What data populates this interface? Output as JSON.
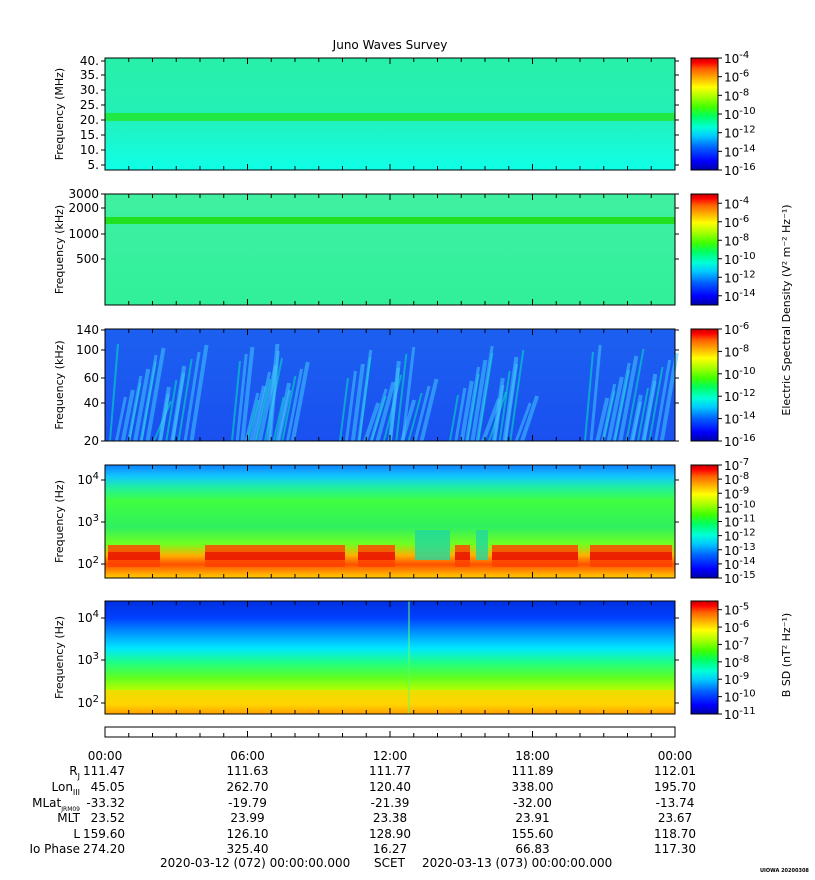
{
  "title": "Juno Waves Survey",
  "footer": {
    "start": "2020-03-12 (072) 00:00:00.000",
    "middle": "SCET",
    "end": "2020-03-13 (073) 00:00:00.000",
    "stamp": "UIOWA 20200308"
  },
  "colorbar_labels": {
    "electric": "Electric Spectral Density (V² m⁻² Hz⁻¹)",
    "magnetic": "B SD (nT² Hz⁻¹)"
  },
  "colors": {
    "scale": [
      "#0000a8",
      "#0000ff",
      "#0060ff",
      "#00c8ff",
      "#00ffd8",
      "#00ff60",
      "#40ff00",
      "#b0ff00",
      "#ffff00",
      "#ffb000",
      "#ff6000",
      "#ff0000",
      "#c00000"
    ]
  },
  "ephemeris": {
    "times": [
      "00:00",
      "06:00",
      "12:00",
      "18:00",
      "00:00"
    ],
    "rows": [
      {
        "label": "R",
        "sub": "J",
        "values": [
          "111.47",
          "111.63",
          "111.77",
          "111.89",
          "112.01"
        ]
      },
      {
        "label": "Lon",
        "sub": "III",
        "values": [
          "45.05",
          "262.70",
          "120.40",
          "338.00",
          "195.70"
        ]
      },
      {
        "label": "MLat",
        "sub": "JRM09",
        "values": [
          "-33.32",
          "-19.79",
          "-21.39",
          "-32.00",
          "-13.74"
        ]
      },
      {
        "label": "MLT",
        "sub": "",
        "values": [
          "23.52",
          "23.99",
          "23.38",
          "23.91",
          "23.67"
        ]
      },
      {
        "label": "L",
        "sub": "",
        "values": [
          "159.60",
          "126.10",
          "128.90",
          "155.60",
          "118.70"
        ]
      },
      {
        "label": "Io Phase",
        "sub": "",
        "values": [
          "274.20",
          "325.40",
          "16.27",
          "66.83",
          "117.30"
        ]
      }
    ]
  },
  "chart_data": [
    {
      "type": "heatmap",
      "title": "Juno Waves Survey",
      "ylabel": "Frequency (MHz)",
      "yticks": [
        "40.",
        "35.",
        "30.",
        "25.",
        "20.",
        "15.",
        "10.",
        "5."
      ],
      "ylim": [
        3,
        41
      ],
      "colorbar": {
        "min_exp": -16,
        "max_exp": -4,
        "tick_exps": [
          -4,
          -6,
          -8,
          -10,
          -12,
          -14,
          -16
        ]
      },
      "features": [
        {
          "type": "constant band",
          "frequency": 21,
          "unit": "MHz",
          "level_exp": -12.5
        }
      ],
      "background_level_exp": -13.2
    },
    {
      "type": "heatmap",
      "ylabel": "Frequency (kHz)",
      "yticks": [
        "3000",
        "2000",
        "1000",
        "500"
      ],
      "yscale": "log",
      "ylim": [
        140,
        3000
      ],
      "colorbar": {
        "min_exp": -15,
        "max_exp": -3,
        "tick_exps": [
          -4,
          -6,
          -8,
          -10,
          -12,
          -14
        ]
      },
      "features": [
        {
          "type": "constant band",
          "frequency": 1500,
          "unit": "kHz",
          "level_exp": -10.5
        }
      ],
      "background_level_exp": -11.8
    },
    {
      "type": "heatmap",
      "ylabel": "Frequency (kHz)",
      "yticks": [
        "140",
        "100",
        "60",
        "40",
        "20"
      ],
      "ylim": [
        20,
        140
      ],
      "colorbar": {
        "min_exp": -16,
        "max_exp": -6,
        "tick_exps": [
          -6,
          -8,
          -10,
          -12,
          -14,
          -16
        ]
      },
      "features": [
        {
          "type": "bursty emission, intervals",
          "level_exp": -13
        }
      ],
      "background_level_exp": -14.8
    },
    {
      "type": "heatmap",
      "ylabel": "Frequency (Hz)",
      "yticks": [
        "10^4",
        "10^3",
        "10^2"
      ],
      "yscale": "log",
      "ylim": [
        50,
        20000
      ],
      "colorbar": {
        "min_exp": -15,
        "max_exp": -7,
        "tick_exps": [
          -7,
          -8,
          -9,
          -10,
          -11,
          -12,
          -13,
          -14,
          -15
        ]
      },
      "features": [
        {
          "type": "low-frequency intense bands",
          "level_exp": -8.5
        }
      ]
    },
    {
      "type": "heatmap",
      "ylabel": "Frequency (Hz)",
      "yticks": [
        "10^4",
        "10^3",
        "10^2"
      ],
      "yscale": "log",
      "ylim": [
        50,
        20000
      ],
      "colorbar": {
        "min_exp": -11,
        "max_exp": -4.5,
        "tick_exps": [
          -5,
          -6,
          -7,
          -8,
          -9,
          -10,
          -11
        ]
      },
      "features": [
        {
          "type": "gradient from low to high frequency",
          "level_exp": -6
        }
      ]
    }
  ]
}
